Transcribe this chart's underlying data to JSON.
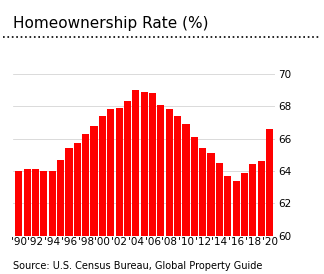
{
  "title": "Homeownership Rate (%)",
  "source": "Source: U.S. Census Bureau, Global Property Guide",
  "years": [
    1990,
    1991,
    1992,
    1993,
    1994,
    1995,
    1996,
    1997,
    1998,
    1999,
    2000,
    2001,
    2002,
    2003,
    2004,
    2005,
    2006,
    2007,
    2008,
    2009,
    2010,
    2011,
    2012,
    2013,
    2014,
    2015,
    2016,
    2017,
    2018,
    2019,
    2020
  ],
  "values": [
    64.0,
    64.1,
    64.1,
    64.0,
    64.0,
    64.7,
    65.4,
    65.7,
    66.3,
    66.8,
    67.4,
    67.8,
    67.9,
    68.3,
    69.0,
    68.9,
    68.8,
    68.1,
    67.8,
    67.4,
    66.9,
    66.1,
    65.4,
    65.1,
    64.5,
    63.7,
    63.4,
    63.9,
    64.4,
    64.6,
    66.6
  ],
  "bar_color": "#ff0000",
  "background_color": "#ffffff",
  "ylim": [
    60,
    70.5
  ],
  "yticks": [
    60,
    62,
    64,
    66,
    68,
    70
  ],
  "xtick_years": [
    1990,
    1992,
    1994,
    1996,
    1998,
    2000,
    2002,
    2004,
    2006,
    2008,
    2010,
    2012,
    2014,
    2016,
    2018,
    2020
  ],
  "xtick_labels": [
    "'90",
    "'92",
    "'94",
    "'96",
    "'98",
    "'00",
    "'02",
    "'04",
    "'06",
    "'08",
    "'10",
    "'12",
    "'14",
    "'16",
    "'18",
    "'20"
  ],
  "title_fontsize": 11,
  "source_fontsize": 7,
  "tick_fontsize": 7.5
}
